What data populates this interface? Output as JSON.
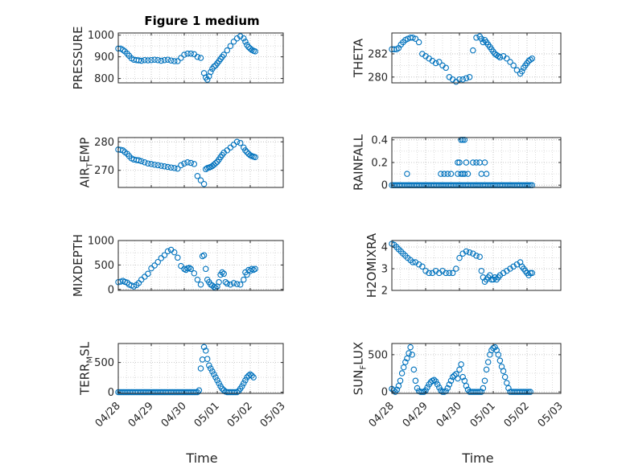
{
  "figure": {
    "title": "Figure 1 medium"
  },
  "colors": {
    "marker": "#0072BD",
    "axes": "#262626",
    "grid": "#b8b8b8"
  },
  "x_ticks": [
    "04/28",
    "04/29",
    "04/30",
    "05/01",
    "05/02",
    "05/03"
  ],
  "x_label": "Time",
  "chart_data": [
    {
      "type": "scatter",
      "id": "pressure",
      "ylabel": "PRESSURE",
      "title": "Figure 1 medium",
      "xlim": [
        0,
        5
      ],
      "ylim": [
        780,
        1010
      ],
      "yticks": [
        "800",
        "900",
        "1000"
      ],
      "ytick_values": [
        800,
        900,
        1000
      ],
      "show_xticks": false,
      "x": [
        0,
        0.07,
        0.14,
        0.2,
        0.27,
        0.33,
        0.4,
        0.47,
        0.55,
        0.62,
        0.7,
        0.8,
        0.9,
        1.0,
        1.1,
        1.2,
        1.3,
        1.4,
        1.5,
        1.6,
        1.7,
        1.8,
        1.9,
        2.0,
        2.1,
        2.2,
        2.3,
        2.4,
        2.5,
        2.6,
        2.65,
        2.7,
        2.75,
        2.8,
        2.85,
        2.9,
        2.95,
        3.0,
        3.05,
        3.1,
        3.15,
        3.2,
        3.3,
        3.4,
        3.5,
        3.6,
        3.7,
        3.8,
        3.85,
        3.9,
        3.95,
        4.0,
        4.05,
        4.1,
        4.15
      ],
      "y": [
        938,
        938,
        932,
        925,
        915,
        905,
        893,
        887,
        885,
        884,
        882,
        885,
        884,
        885,
        887,
        885,
        882,
        885,
        887,
        883,
        880,
        880,
        895,
        910,
        915,
        915,
        912,
        900,
        895,
        825,
        805,
        795,
        810,
        830,
        845,
        855,
        860,
        870,
        880,
        890,
        900,
        910,
        930,
        950,
        970,
        985,
        995,
        985,
        970,
        955,
        945,
        938,
        932,
        928,
        925
      ]
    },
    {
      "type": "scatter",
      "id": "theta",
      "ylabel": "THETA",
      "xlim": [
        0,
        5
      ],
      "ylim": [
        279.5,
        283.8
      ],
      "yticks": [
        "280",
        "282"
      ],
      "ytick_values": [
        280,
        282
      ],
      "show_xticks": false,
      "x": [
        0,
        0.07,
        0.14,
        0.2,
        0.27,
        0.33,
        0.4,
        0.47,
        0.55,
        0.62,
        0.7,
        0.8,
        0.9,
        1.0,
        1.1,
        1.2,
        1.3,
        1.4,
        1.5,
        1.6,
        1.7,
        1.8,
        1.9,
        2.0,
        2.1,
        2.2,
        2.3,
        2.4,
        2.5,
        2.6,
        2.65,
        2.7,
        2.75,
        2.8,
        2.85,
        2.9,
        2.95,
        3.0,
        3.05,
        3.1,
        3.15,
        3.2,
        3.3,
        3.4,
        3.5,
        3.6,
        3.7,
        3.8,
        3.85,
        3.9,
        3.95,
        4.0,
        4.05,
        4.1,
        4.15
      ],
      "y": [
        282.4,
        282.4,
        282.4,
        282.5,
        282.8,
        283.0,
        283.2,
        283.3,
        283.4,
        283.4,
        283.3,
        283.0,
        282.0,
        281.8,
        281.6,
        281.4,
        281.2,
        281.3,
        281.0,
        280.8,
        280.0,
        279.8,
        279.6,
        279.8,
        279.8,
        279.9,
        280.0,
        282.3,
        283.4,
        283.5,
        283.3,
        283.0,
        283.2,
        283.0,
        282.8,
        282.6,
        282.4,
        282.2,
        282.0,
        281.9,
        281.8,
        281.7,
        281.8,
        281.6,
        281.3,
        281.0,
        280.6,
        280.3,
        280.5,
        280.8,
        281.0,
        281.2,
        281.4,
        281.5,
        281.6
      ]
    },
    {
      "type": "scatter",
      "id": "air_temp",
      "ylabel": "AIR",
      "ylabel_sub": "T",
      "ylabel_tail": "EMP",
      "xlim": [
        0,
        5
      ],
      "ylim": [
        264,
        281.5
      ],
      "yticks": [
        "270",
        "280"
      ],
      "ytick_values": [
        270,
        280
      ],
      "show_xticks": false,
      "x": [
        0,
        0.07,
        0.14,
        0.2,
        0.27,
        0.33,
        0.4,
        0.47,
        0.55,
        0.62,
        0.7,
        0.8,
        0.9,
        1.0,
        1.1,
        1.2,
        1.3,
        1.4,
        1.5,
        1.6,
        1.7,
        1.8,
        1.9,
        2.0,
        2.1,
        2.2,
        2.3,
        2.4,
        2.5,
        2.6,
        2.65,
        2.7,
        2.75,
        2.8,
        2.85,
        2.9,
        2.95,
        3.0,
        3.05,
        3.1,
        3.15,
        3.2,
        3.3,
        3.4,
        3.5,
        3.6,
        3.7,
        3.8,
        3.85,
        3.9,
        3.95,
        4.0,
        4.05,
        4.1,
        4.15
      ],
      "y": [
        277.3,
        277.2,
        277.0,
        276.4,
        275.8,
        275.0,
        274.2,
        273.8,
        273.6,
        273.5,
        273.2,
        272.8,
        272.4,
        272.2,
        272.0,
        271.8,
        271.6,
        271.4,
        271.2,
        271.0,
        270.8,
        270.6,
        271.8,
        272.4,
        272.8,
        272.6,
        272.2,
        268.0,
        266.5,
        265.2,
        270.4,
        270.8,
        271.0,
        271.2,
        271.5,
        272.0,
        272.5,
        273.0,
        273.8,
        274.6,
        275.4,
        276.2,
        277.0,
        278.0,
        279.0,
        280.0,
        279.6,
        278.0,
        277.0,
        276.4,
        275.8,
        275.3,
        275.0,
        274.8,
        274.6
      ]
    },
    {
      "type": "scatter",
      "id": "rainfall",
      "ylabel": "RAINFALL",
      "xlim": [
        0,
        5
      ],
      "ylim": [
        -0.02,
        0.42
      ],
      "yticks": [
        "0",
        "0.2",
        "0.4"
      ],
      "ytick_values": [
        0,
        0.2,
        0.4
      ],
      "show_xticks": false,
      "x": [
        0,
        0.05,
        0.1,
        0.15,
        0.2,
        0.25,
        0.3,
        0.35,
        0.4,
        0.45,
        0.5,
        0.55,
        0.6,
        0.65,
        0.7,
        0.75,
        0.8,
        0.85,
        0.9,
        0.95,
        1.0,
        1.05,
        1.1,
        1.15,
        1.2,
        1.25,
        1.3,
        1.35,
        1.4,
        1.45,
        1.5,
        1.55,
        1.6,
        1.65,
        1.7,
        1.75,
        1.8,
        1.85,
        1.9,
        1.95,
        2.0,
        2.05,
        2.1,
        2.15,
        2.2,
        2.25,
        2.3,
        2.35,
        2.4,
        2.45,
        2.5,
        2.55,
        2.6,
        2.65,
        2.7,
        2.75,
        2.8,
        2.85,
        2.9,
        2.95,
        3.0,
        3.05,
        3.1,
        3.15,
        3.2,
        3.25,
        3.3,
        3.35,
        3.4,
        3.45,
        3.5,
        3.55,
        3.6,
        3.65,
        3.7,
        3.75,
        3.8,
        3.85,
        3.9,
        3.95,
        4.0,
        4.05,
        4.1,
        4.15,
        0.45,
        1.45,
        1.55,
        1.65,
        1.75,
        1.95,
        2.0,
        2.05,
        2.1,
        2.15,
        2.2,
        2.05,
        2.1,
        2.15,
        1.95,
        2.25,
        2.4,
        2.5,
        2.6,
        2.65,
        2.8,
        2.75
      ],
      "y": [
        0,
        0,
        0,
        0,
        0,
        0,
        0,
        0,
        0,
        0,
        0,
        0,
        0,
        0,
        0,
        0,
        0,
        0,
        0,
        0,
        0,
        0,
        0,
        0,
        0,
        0,
        0,
        0,
        0,
        0,
        0,
        0,
        0,
        0,
        0,
        0,
        0,
        0,
        0,
        0,
        0,
        0,
        0,
        0,
        0,
        0,
        0,
        0,
        0,
        0,
        0,
        0,
        0,
        0,
        0,
        0,
        0,
        0,
        0,
        0,
        0,
        0,
        0,
        0,
        0,
        0,
        0,
        0,
        0,
        0,
        0,
        0,
        0,
        0,
        0,
        0,
        0,
        0,
        0,
        0,
        0,
        0,
        0,
        0,
        0.1,
        0.1,
        0.1,
        0.1,
        0.1,
        0.1,
        0.2,
        0.4,
        0.4,
        0.4,
        0.2,
        0.1,
        0.1,
        0.1,
        0.2,
        0.1,
        0.2,
        0.2,
        0.2,
        0.1,
        0.1,
        0.2
      ]
    },
    {
      "type": "scatter",
      "id": "mixdepth",
      "ylabel": "MIXDEPTH",
      "xlim": [
        0,
        5
      ],
      "ylim": [
        -20,
        1000
      ],
      "yticks": [
        "0",
        "500",
        "1000"
      ],
      "ytick_values": [
        0,
        500,
        1000
      ],
      "show_xticks": false,
      "x": [
        0,
        0.07,
        0.14,
        0.2,
        0.27,
        0.33,
        0.4,
        0.47,
        0.55,
        0.62,
        0.7,
        0.8,
        0.9,
        1.0,
        1.1,
        1.2,
        1.3,
        1.4,
        1.5,
        1.6,
        1.7,
        1.8,
        1.9,
        2.0,
        2.05,
        2.1,
        2.15,
        2.2,
        2.3,
        2.4,
        2.5,
        2.55,
        2.6,
        2.65,
        2.7,
        2.75,
        2.8,
        2.85,
        2.9,
        2.95,
        3.0,
        3.05,
        3.1,
        3.15,
        3.2,
        3.25,
        3.3,
        3.4,
        3.5,
        3.6,
        3.7,
        3.8,
        3.85,
        3.9,
        3.95,
        4.0,
        4.05,
        4.1,
        4.15
      ],
      "y": [
        150,
        160,
        175,
        155,
        140,
        100,
        80,
        60,
        90,
        130,
        200,
        260,
        320,
        430,
        490,
        560,
        640,
        700,
        780,
        810,
        760,
        650,
        480,
        420,
        400,
        430,
        440,
        420,
        330,
        200,
        100,
        680,
        700,
        420,
        200,
        150,
        100,
        80,
        50,
        30,
        60,
        150,
        300,
        350,
        320,
        150,
        120,
        100,
        130,
        110,
        100,
        200,
        350,
        300,
        400,
        380,
        420,
        400,
        420
      ]
    },
    {
      "type": "scatter",
      "id": "h2omixra",
      "ylabel": "H2OMIXRA",
      "xlim": [
        0,
        5
      ],
      "ylim": [
        2,
        4.3
      ],
      "yticks": [
        "2",
        "3",
        "4"
      ],
      "ytick_values": [
        2,
        3,
        4
      ],
      "show_xticks": false,
      "x": [
        0,
        0.07,
        0.14,
        0.2,
        0.27,
        0.33,
        0.4,
        0.47,
        0.55,
        0.62,
        0.7,
        0.8,
        0.9,
        1.0,
        1.1,
        1.2,
        1.3,
        1.4,
        1.5,
        1.6,
        1.7,
        1.8,
        1.9,
        2.0,
        2.1,
        2.2,
        2.3,
        2.4,
        2.5,
        2.6,
        2.65,
        2.7,
        2.75,
        2.8,
        2.85,
        2.9,
        2.95,
        3.0,
        3.05,
        3.1,
        3.15,
        3.2,
        3.3,
        3.4,
        3.5,
        3.6,
        3.7,
        3.8,
        3.85,
        3.9,
        3.95,
        4.0,
        4.05,
        4.1,
        4.15
      ],
      "y": [
        4.15,
        4.1,
        4.0,
        3.9,
        3.8,
        3.7,
        3.6,
        3.5,
        3.4,
        3.3,
        3.3,
        3.2,
        3.1,
        2.9,
        2.8,
        2.8,
        2.9,
        2.8,
        2.9,
        2.8,
        2.8,
        2.8,
        3.0,
        3.5,
        3.7,
        3.8,
        3.75,
        3.7,
        3.6,
        3.55,
        2.9,
        2.6,
        2.4,
        2.5,
        2.6,
        2.7,
        2.5,
        2.5,
        2.6,
        2.5,
        2.6,
        2.7,
        2.8,
        2.9,
        3.0,
        3.1,
        3.2,
        3.3,
        3.1,
        3.0,
        2.9,
        2.8,
        2.7,
        2.8,
        2.8
      ]
    },
    {
      "type": "scatter",
      "id": "terr_msl",
      "ylabel": "TERR",
      "ylabel_sub": "M",
      "ylabel_tail": "SL",
      "xlim": [
        0,
        5
      ],
      "ylim": [
        -20,
        820
      ],
      "yticks": [
        "0",
        "500"
      ],
      "ytick_values": [
        0,
        500
      ],
      "show_xticks": true,
      "x": [
        0,
        0.05,
        0.1,
        0.15,
        0.2,
        0.25,
        0.3,
        0.35,
        0.4,
        0.45,
        0.5,
        0.55,
        0.6,
        0.65,
        0.7,
        0.75,
        0.8,
        0.85,
        0.9,
        0.95,
        1.0,
        1.05,
        1.1,
        1.15,
        1.2,
        1.25,
        1.3,
        1.35,
        1.4,
        1.45,
        1.5,
        1.55,
        1.6,
        1.65,
        1.7,
        1.75,
        1.8,
        1.85,
        1.9,
        1.95,
        2.0,
        2.05,
        2.1,
        2.15,
        2.2,
        2.25,
        2.3,
        2.35,
        2.4,
        2.45,
        2.5,
        2.55,
        2.6,
        2.65,
        2.7,
        2.75,
        2.8,
        2.85,
        2.9,
        2.95,
        3.0,
        3.05,
        3.1,
        3.15,
        3.2,
        3.25,
        3.3,
        3.35,
        3.4,
        3.45,
        3.5,
        3.55,
        3.6,
        3.65,
        3.7,
        3.75,
        3.8,
        3.85,
        3.9,
        3.95,
        4.0,
        4.05,
        4.1
      ],
      "y": [
        0,
        0,
        0,
        0,
        0,
        0,
        0,
        0,
        0,
        0,
        0,
        0,
        0,
        0,
        0,
        0,
        0,
        0,
        0,
        0,
        0,
        0,
        0,
        0,
        0,
        0,
        0,
        0,
        0,
        0,
        0,
        0,
        0,
        0,
        0,
        0,
        0,
        0,
        0,
        0,
        0,
        0,
        0,
        0,
        0,
        0,
        0,
        0,
        0,
        30,
        400,
        550,
        760,
        700,
        560,
        450,
        400,
        350,
        300,
        250,
        200,
        150,
        100,
        60,
        30,
        10,
        0,
        0,
        0,
        0,
        0,
        0,
        0,
        20,
        60,
        100,
        150,
        200,
        250,
        280,
        300,
        280,
        250
      ]
    },
    {
      "type": "scatter",
      "id": "sun_flux",
      "ylabel": "SUN",
      "ylabel_sub": "F",
      "ylabel_tail": "LUX",
      "xlim": [
        0,
        5
      ],
      "ylim": [
        -20,
        650
      ],
      "yticks": [
        "0",
        "500"
      ],
      "ytick_values": [
        0,
        500
      ],
      "show_xticks": true,
      "x": [
        0,
        0.05,
        0.1,
        0.15,
        0.2,
        0.25,
        0.3,
        0.35,
        0.4,
        0.45,
        0.5,
        0.55,
        0.6,
        0.65,
        0.7,
        0.75,
        0.8,
        0.85,
        0.9,
        0.95,
        1.0,
        1.05,
        1.1,
        1.15,
        1.2,
        1.25,
        1.3,
        1.35,
        1.4,
        1.45,
        1.5,
        1.55,
        1.6,
        1.65,
        1.7,
        1.75,
        1.8,
        1.85,
        1.9,
        1.95,
        2.0,
        2.05,
        2.1,
        2.15,
        2.2,
        2.25,
        2.3,
        2.35,
        2.4,
        2.45,
        2.5,
        2.55,
        2.6,
        2.65,
        2.7,
        2.75,
        2.8,
        2.85,
        2.9,
        2.95,
        3.0,
        3.05,
        3.1,
        3.15,
        3.2,
        3.25,
        3.3,
        3.35,
        3.4,
        3.45,
        3.5,
        3.55,
        3.6,
        3.65,
        3.7,
        3.75,
        3.8,
        3.85,
        3.9,
        3.95,
        4.0,
        4.05,
        4.1
      ],
      "y": [
        40,
        20,
        0,
        30,
        80,
        150,
        250,
        330,
        400,
        450,
        520,
        600,
        500,
        300,
        150,
        50,
        10,
        0,
        0,
        0,
        20,
        60,
        100,
        130,
        150,
        160,
        140,
        100,
        60,
        20,
        0,
        0,
        10,
        50,
        100,
        150,
        200,
        220,
        240,
        180,
        300,
        370,
        200,
        150,
        80,
        30,
        0,
        0,
        0,
        0,
        0,
        0,
        0,
        0,
        50,
        150,
        300,
        400,
        500,
        560,
        590,
        600,
        560,
        500,
        420,
        340,
        280,
        200,
        120,
        50,
        0,
        0,
        0,
        0,
        0,
        0,
        0,
        0,
        0,
        0,
        0,
        0,
        0
      ]
    }
  ]
}
